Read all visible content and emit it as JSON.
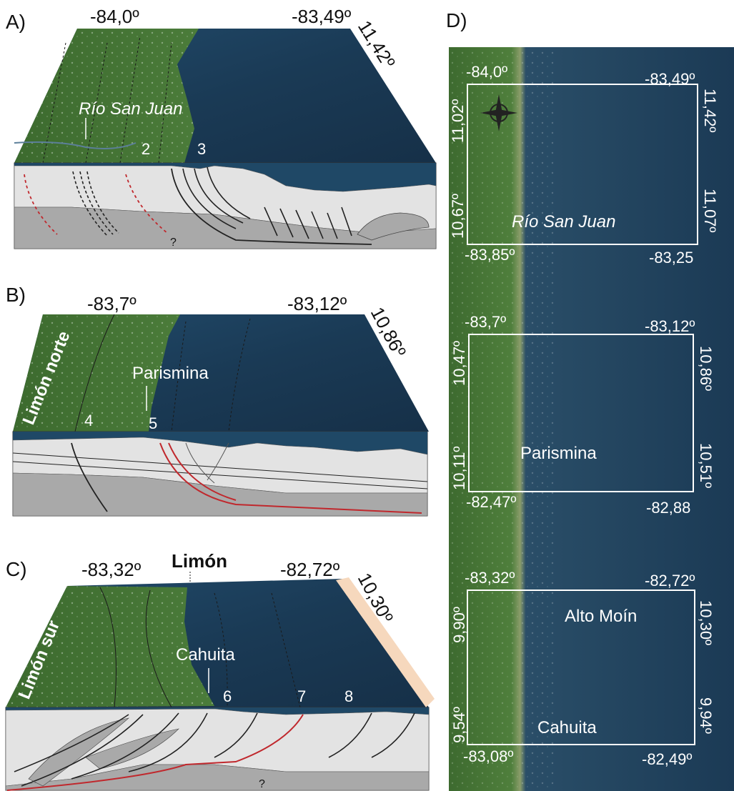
{
  "panels": {
    "a": {
      "letter": "A)",
      "lon_left": "-84,0º",
      "lon_right": "-83,49º",
      "lat": "11,42º",
      "river": "Río San Juan",
      "faults": [
        "2",
        "3"
      ],
      "unknown": "?"
    },
    "b": {
      "letter": "B)",
      "lon_left": "-83,7º",
      "lon_right": "-83,12º",
      "lat": "10,86º",
      "region": "Limón norte",
      "town": "Parismina",
      "faults": [
        "4",
        "5"
      ]
    },
    "c": {
      "letter": "C)",
      "lon_left": "-83,32º",
      "city": "Limón",
      "lon_right": "-82,72º",
      "lat": "10,30º",
      "region": "Limón sur",
      "town": "Cahuita",
      "faults": [
        "6",
        "7",
        "8"
      ],
      "unknown": "?"
    },
    "d": {
      "letter": "D)",
      "box1": {
        "tl": "-84,0º",
        "tr": "-83,49º",
        "lat_tl": "11,02º",
        "lat_tr": "11,42º",
        "lat_bl": "10,67º",
        "lat_br": "11,07º",
        "bl": "-83,85º",
        "br": "-83,25",
        "place": "Río San Juan"
      },
      "box2": {
        "tl": "-83,7º",
        "tr": "-83,12º",
        "lat_tl": "10,47º",
        "lat_tr": "10,86º",
        "lat_bl": "10,11º",
        "lat_br": "10,51º",
        "bl": "-82,47º",
        "br": "-82,88",
        "place": "Parismina"
      },
      "box3": {
        "tl": "-83,32º",
        "tr": "-82,72º",
        "lat_tl": "9,90º",
        "lat_tr": "10,30º",
        "lat_bl": "9,54º",
        "lat_br": "9,94º",
        "bl": "-83,08º",
        "br": "-82,49º",
        "place_top": "Alto Moín",
        "place_bottom": "Cahuita"
      }
    }
  },
  "colors": {
    "sea": "#1b3a55",
    "land": "#3f6a30",
    "crust_light": "#e3e3e3",
    "crust_dark": "#a9a9a9",
    "fault_red": "#c0282d",
    "sand_edge": "#f6d8bd"
  }
}
